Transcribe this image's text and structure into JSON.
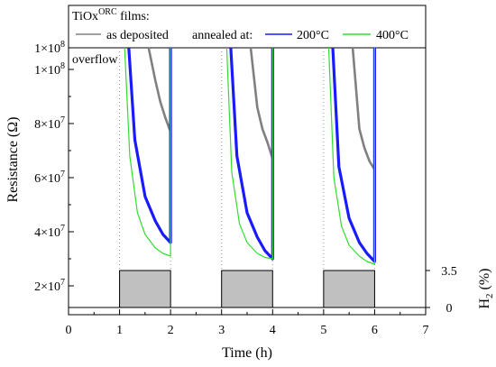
{
  "chart_data": {
    "type": "line",
    "xlabel": "Time (h)",
    "ylabel": "Resistance (Ω)",
    "y2label_base": "H",
    "y2label_sub": "2",
    "y2label_tail": " (%)",
    "xlim": [
      0,
      7
    ],
    "ylim": [
      12000000,
      108000000
    ],
    "x_ticks": [
      0,
      1,
      2,
      3,
      4,
      5,
      6,
      7
    ],
    "x_tick_labels": [
      "0",
      "1",
      "2",
      "3",
      "4",
      "5",
      "6",
      "7"
    ],
    "y_ticks": [
      {
        "value": 20000000,
        "label_mantissa": "2×10",
        "label_exp": "7"
      },
      {
        "value": 40000000,
        "label_mantissa": "4×10",
        "label_exp": "7"
      },
      {
        "value": 60000000,
        "label_mantissa": "6×10",
        "label_exp": "7"
      },
      {
        "value": 80000000,
        "label_mantissa": "8×10",
        "label_exp": "7"
      },
      {
        "value": 100000000,
        "label_mantissa": "1×10",
        "label_exp": "8"
      },
      {
        "value": 108000000,
        "label_mantissa": "1×10",
        "label_exp": "8"
      }
    ],
    "y2_ticks": [
      {
        "label": "0",
        "value": 0
      },
      {
        "label": "3.5",
        "value": 3.5
      }
    ],
    "y2_range": [
      0,
      3.5
    ],
    "overflow_label": "overflow",
    "legend": {
      "title_base": "TiOx",
      "title_sup": "ORC",
      "title_tail": " films:",
      "annealed_label": "annealed at:",
      "entries": [
        "as deposited",
        "200°C",
        "400°C"
      ]
    },
    "h2_pulses": [
      {
        "start": 1,
        "end": 2,
        "h2_percent": 3.5
      },
      {
        "start": 3,
        "end": 4,
        "h2_percent": 3.5
      },
      {
        "start": 5,
        "end": 6,
        "h2_percent": 3.5
      }
    ],
    "series": [
      {
        "name": "as deposited",
        "color": "#808080",
        "cycles": [
          {
            "x": [
              1.57,
              1.7,
              1.8,
              1.9,
              2.0
            ],
            "y": [
              108000000,
              96000000,
              88000000,
              82000000,
              77000000
            ]
          },
          {
            "x": [
              3.57,
              3.7,
              3.8,
              3.9,
              4.0
            ],
            "y": [
              108000000,
              86000000,
              78000000,
              73000000,
              67000000
            ]
          },
          {
            "x": [
              5.57,
              5.7,
              5.8,
              5.9,
              6.0
            ],
            "y": [
              108000000,
              78000000,
              71000000,
              66000000,
              63000000
            ]
          }
        ]
      },
      {
        "name": "200°C",
        "color": "#1a1aff",
        "cycles": [
          {
            "x": [
              1.18,
              1.3,
              1.5,
              1.7,
              1.85,
              2.0
            ],
            "y": [
              108000000,
              74000000,
              53000000,
              44000000,
              39000000,
              36000000
            ]
          },
          {
            "x": [
              3.18,
              3.3,
              3.5,
              3.7,
              3.85,
              4.0
            ],
            "y": [
              108000000,
              68000000,
              47000000,
              38000000,
              33000000,
              30000000
            ]
          },
          {
            "x": [
              5.18,
              5.3,
              5.5,
              5.7,
              5.85,
              6.0
            ],
            "y": [
              108000000,
              64000000,
              45000000,
              36000000,
              32000000,
              29000000
            ]
          }
        ]
      },
      {
        "name": "400°C",
        "color": "#33dd33",
        "cycles": [
          {
            "x": [
              1.1,
              1.2,
              1.35,
              1.5,
              1.7,
              1.85,
              2.0
            ],
            "y": [
              108000000,
              68000000,
              47000000,
              39000000,
              34000000,
              32000000,
              31000000
            ]
          },
          {
            "x": [
              3.1,
              3.2,
              3.35,
              3.5,
              3.7,
              3.85,
              4.0
            ],
            "y": [
              108000000,
              62000000,
              43000000,
              36000000,
              32000000,
              30500000,
              30000000
            ]
          },
          {
            "x": [
              5.1,
              5.2,
              5.35,
              5.5,
              5.7,
              5.85,
              6.0
            ],
            "y": [
              108000000,
              60000000,
              42000000,
              35000000,
              31000000,
              29000000,
              28000000
            ]
          }
        ]
      }
    ]
  }
}
